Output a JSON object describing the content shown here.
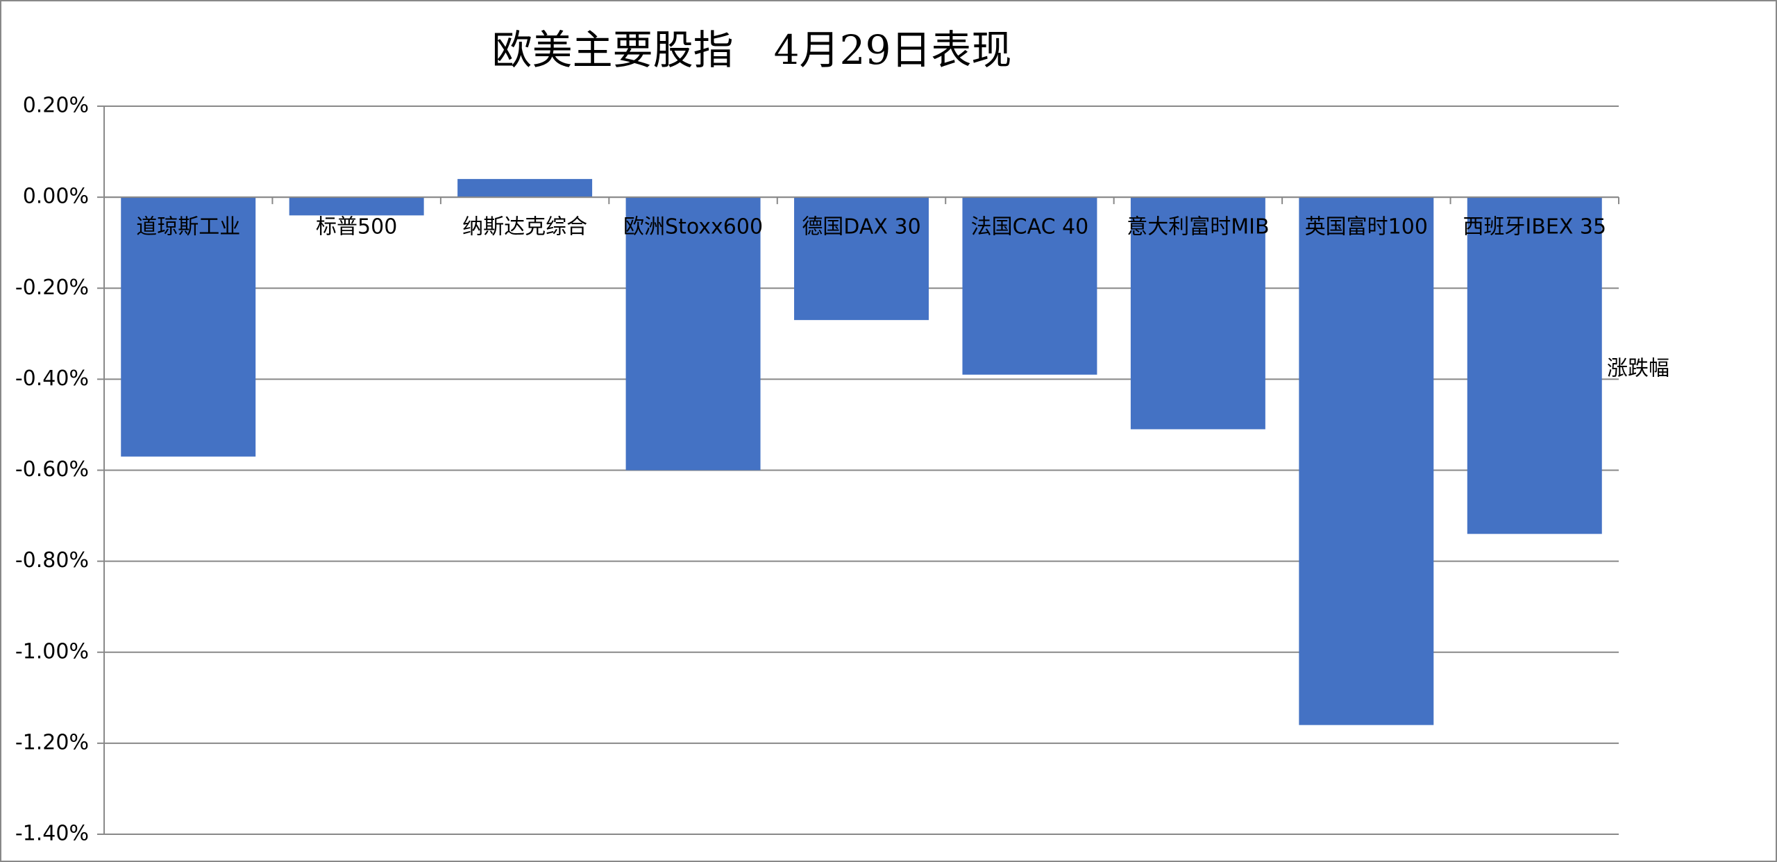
{
  "chart_data": {
    "type": "bar",
    "title": "欧美主要股指　4月29日表现",
    "categories": [
      "道琼斯工业",
      "标普500",
      "纳斯达克综合",
      "欧洲Stoxx600",
      "德国DAX 30",
      "法国CAC 40",
      "意大利富时MIB",
      "英国富时100",
      "西班牙IBEX 35"
    ],
    "series": [
      {
        "name": "涨跌幅",
        "color": "#4472c4",
        "values": [
          -0.57,
          -0.04,
          0.04,
          -0.6,
          -0.27,
          -0.39,
          -0.51,
          -1.16,
          -0.74
        ]
      }
    ],
    "ylim": [
      -1.4,
      0.2
    ],
    "yticks": [
      {
        "value": 0.2,
        "label": "0.20%"
      },
      {
        "value": 0,
        "label": "0.00%"
      },
      {
        "value": -0.2,
        "label": "-0.20%"
      },
      {
        "value": -0.4,
        "label": "-0.40%"
      },
      {
        "value": -0.6,
        "label": "-0.60%"
      },
      {
        "value": -0.8,
        "label": "-0.80%"
      },
      {
        "value": -1.0,
        "label": "-1.00%"
      },
      {
        "value": -1.2,
        "label": "-1.20%"
      },
      {
        "value": -1.4,
        "label": "-1.40%"
      }
    ],
    "grid": true,
    "legend": "right"
  }
}
